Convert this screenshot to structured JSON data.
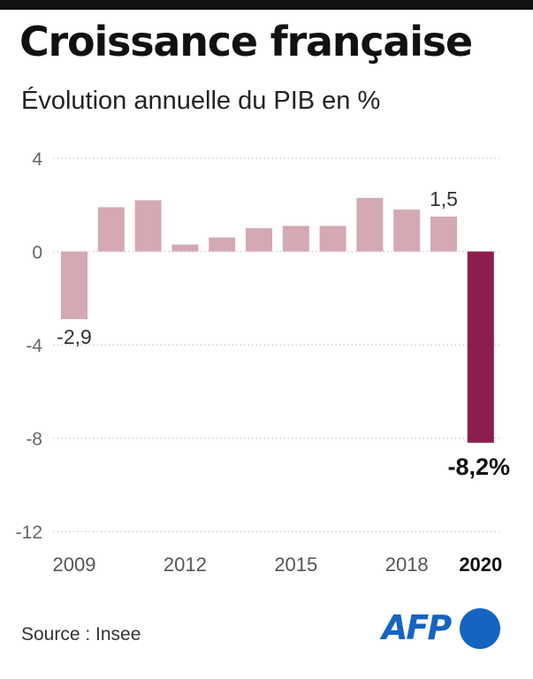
{
  "header": {
    "title": "Croissance française",
    "subtitle": "Évolution annuelle du PIB en %"
  },
  "footer": {
    "source": "Source : Insee",
    "logo": "AFP"
  },
  "colors": {
    "bar": "#d4a9b3",
    "highlight": "#8b1e4f",
    "grid": "#c8c8c8",
    "tick": "#666666"
  },
  "chart_data": {
    "type": "bar",
    "categories": [
      "2009",
      "2010",
      "2011",
      "2012",
      "2013",
      "2014",
      "2015",
      "2016",
      "2017",
      "2018",
      "2019",
      "2020"
    ],
    "values": [
      -2.9,
      1.9,
      2.2,
      0.3,
      0.6,
      1.0,
      1.1,
      1.1,
      2.3,
      1.8,
      1.5,
      -8.2
    ],
    "x_tick_labels": [
      "2009",
      "2012",
      "2015",
      "2018",
      "2020"
    ],
    "y_ticks": [
      "4",
      "0",
      "-4",
      "-8",
      "-12"
    ],
    "data_labels": {
      "2009": "-2,9",
      "2019": "1,5",
      "2020": "-8,2%"
    },
    "highlight_category": "2020",
    "ylim": [
      -12,
      4
    ],
    "grid": true,
    "gridline_style": "dotted",
    "xlabel": "",
    "ylabel": ""
  }
}
